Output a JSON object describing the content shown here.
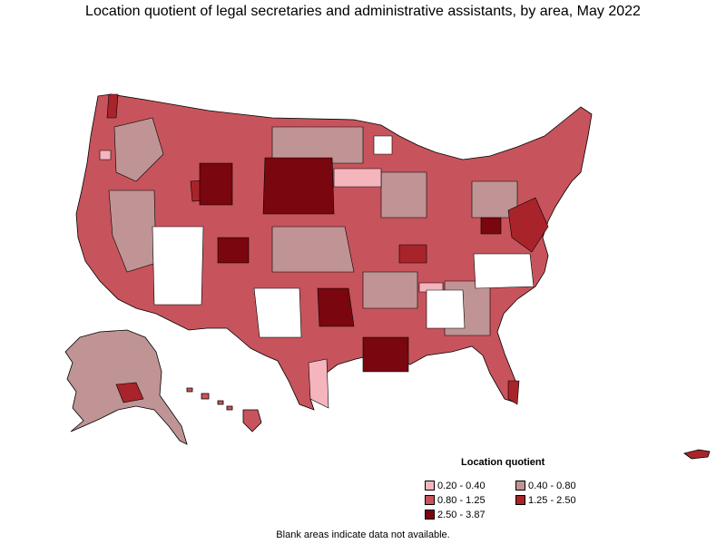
{
  "title": "Location quotient of legal secretaries and administrative assistants, by area, May 2022",
  "legend": {
    "title": "Location quotient",
    "items": [
      {
        "label": "0.20 - 0.40",
        "color": "#f4b5bd"
      },
      {
        "label": "0.40 - 0.80",
        "color": "#c09494"
      },
      {
        "label": "0.80 - 1.25",
        "color": "#c7545c"
      },
      {
        "label": "1.25 - 2.50",
        "color": "#a8242a"
      },
      {
        "label": "2.50 - 3.87",
        "color": "#7a0610"
      }
    ]
  },
  "note": "Blank areas indicate data not available.",
  "colors": {
    "border": "#000000",
    "blank": "#ffffff"
  }
}
